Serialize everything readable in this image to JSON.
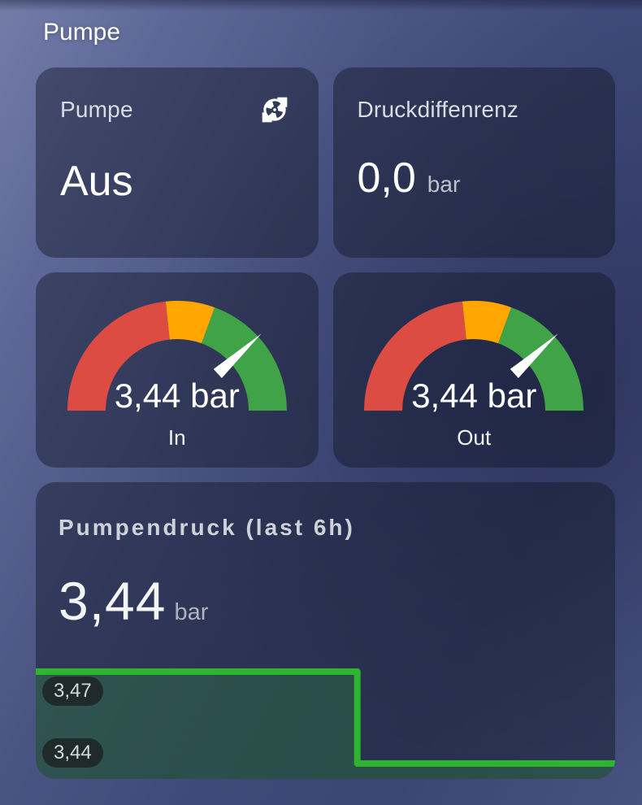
{
  "page": {
    "title": "Pumpe"
  },
  "cards": {
    "pump": {
      "title": "Pumpe",
      "state": "Aus",
      "icon": "pump-icon"
    },
    "pressure_diff": {
      "title": "Druckdiffenrenz",
      "value": "0,0",
      "unit": "bar"
    },
    "history": {
      "value": "3,44",
      "unit": "bar"
    }
  },
  "colors": {
    "gauge_red": "#dc4c42",
    "gauge_orange": "#ffa600",
    "gauge_green": "#40a347",
    "graph_line_green": "#2eb430",
    "needle_white": "#ffffff"
  },
  "chart_data": [
    {
      "type": "gauge",
      "name": "In",
      "value": 3.44,
      "display_value": "3,44 bar",
      "min": 0,
      "max": 4.5,
      "needle_color": "#ffffff",
      "segments": [
        {
          "from": 0,
          "color": "#dc4c42"
        },
        {
          "from": 2.1,
          "color": "#ffa600"
        },
        {
          "from": 2.75,
          "color": "#40a347"
        }
      ]
    },
    {
      "type": "gauge",
      "name": "Out",
      "value": 3.44,
      "display_value": "3,44 bar",
      "min": 0,
      "max": 4.5,
      "needle_color": "#ffffff",
      "segments": [
        {
          "from": 0,
          "color": "#dc4c42"
        },
        {
          "from": 2.1,
          "color": "#ffa600"
        },
        {
          "from": 2.75,
          "color": "#40a347"
        }
      ]
    },
    {
      "type": "line",
      "title": "Pumpendruck (last 6h)",
      "unit": "bar",
      "current_value": "3,44",
      "x_span": "6h",
      "points": [
        [
          0,
          3.47
        ],
        [
          0.555,
          3.47
        ],
        [
          0.555,
          3.44
        ],
        [
          1,
          3.44
        ]
      ],
      "y_min": 3.44,
      "y_max": 3.47,
      "line_color": "#2eb430",
      "fill_color": "rgba(46,180,48,0.22)",
      "extrema": {
        "max_label": "3,47",
        "min_label": "3,44"
      },
      "grid": false,
      "axes_hidden": true,
      "legend": false
    }
  ]
}
